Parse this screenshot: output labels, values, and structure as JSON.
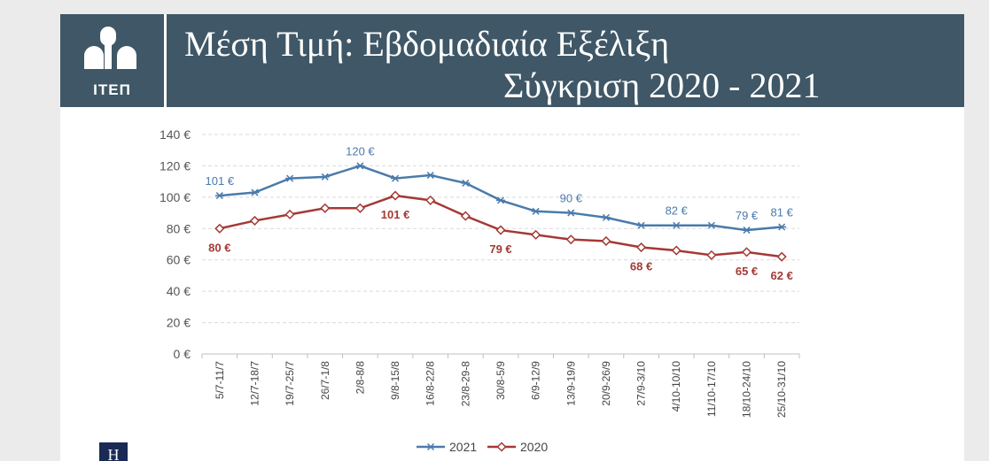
{
  "header": {
    "logo_text": "ΙΤΕΠ",
    "title_line1": "Μέση Τιμή: Εβδομαδιαία Εξέλιξη",
    "title_line2": "Σύγκριση 2020 - 2021"
  },
  "corner_logo_text": "Η",
  "colors": {
    "header_bg": "#3f5766",
    "series_2021": "#4a7bab",
    "series_2020": "#a33a35"
  },
  "chart_data": {
    "type": "line",
    "categories": [
      "5/7-11/7",
      "12/7-18/7",
      "19/7-25/7",
      "26/7-1/8",
      "2/8-8/8",
      "9/8-15/8",
      "16/8-22/8",
      "23/8-29-8",
      "30/8-5/9",
      "6/9-12/9",
      "13/9-19/9",
      "20/9-26/9",
      "27/9-3/10",
      "4/10-10/10",
      "11/10-17/10",
      "18/10-24/10",
      "25/10-31/10"
    ],
    "yticks": [
      "0 €",
      "20 €",
      "40 €",
      "60 €",
      "80 €",
      "100 €",
      "120 €",
      "140 €"
    ],
    "ylim": [
      0,
      140
    ],
    "grid": true,
    "legend_position": "bottom",
    "series": [
      {
        "name": "2021",
        "marker": "star",
        "values": [
          101,
          103,
          112,
          113,
          120,
          112,
          114,
          109,
          98,
          91,
          90,
          87,
          82,
          82,
          82,
          79,
          81
        ],
        "labels": [
          {
            "index": 0,
            "text": "101 €",
            "pos": "above"
          },
          {
            "index": 4,
            "text": "120 €",
            "pos": "above"
          },
          {
            "index": 10,
            "text": "90 €",
            "pos": "above"
          },
          {
            "index": 13,
            "text": "82 €",
            "pos": "above"
          },
          {
            "index": 15,
            "text": "79 €",
            "pos": "above"
          },
          {
            "index": 16,
            "text": "81 €",
            "pos": "above"
          }
        ]
      },
      {
        "name": "2020",
        "marker": "diamond",
        "values": [
          80,
          85,
          89,
          93,
          93,
          101,
          98,
          88,
          79,
          76,
          73,
          72,
          68,
          66,
          63,
          65,
          62
        ],
        "labels": [
          {
            "index": 0,
            "text": "80 €",
            "pos": "below"
          },
          {
            "index": 5,
            "text": "101 €",
            "pos": "below"
          },
          {
            "index": 8,
            "text": "79 €",
            "pos": "below"
          },
          {
            "index": 12,
            "text": "68 €",
            "pos": "below"
          },
          {
            "index": 15,
            "text": "65 €",
            "pos": "below"
          },
          {
            "index": 16,
            "text": "62 €",
            "pos": "below"
          }
        ]
      }
    ]
  }
}
